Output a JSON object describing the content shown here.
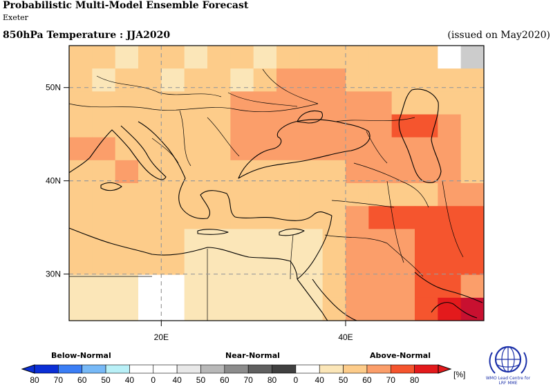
{
  "header": {
    "title": "Probabilistic Multi-Model Ensemble Forecast",
    "subtitle": "Exeter",
    "variable": "850hPa Temperature : JJA2020",
    "issued": "(issued on May2020)"
  },
  "map": {
    "lon_range": [
      10,
      55
    ],
    "lat_range": [
      25,
      54.5
    ],
    "lon_ticks": [
      {
        "value": 20,
        "label": "20E"
      },
      {
        "value": 40,
        "label": "40E"
      }
    ],
    "lat_ticks": [
      {
        "value": 30,
        "label": "30N"
      },
      {
        "value": 40,
        "label": "40N"
      },
      {
        "value": 50,
        "label": "50N"
      }
    ],
    "grid_lines": true,
    "palette": {
      "B40": "#ffffff",
      "N40": "#cccccc",
      "A40": "#fbe6b8",
      "A50": "#fdcc8a",
      "A60": "#fb9e6a",
      "A70": "#f5552e",
      "A80": "#e31a1c",
      "A90": "#c81030"
    }
  },
  "legend": {
    "categories": [
      "Below-Normal",
      "Near-Normal",
      "Above-Normal"
    ],
    "labels": [
      "80",
      "70",
      "60",
      "50",
      "40",
      "0",
      "40",
      "50",
      "60",
      "70",
      "80",
      "0",
      "40",
      "50",
      "60",
      "70",
      "80"
    ],
    "unit": "[%]",
    "colors": [
      "#0b2fd6",
      "#3b7ef5",
      "#77b9f7",
      "#b9f0f7",
      "#ffffff",
      "#ffffff",
      "#e8e8e8",
      "#b8b8b8",
      "#8c8c8c",
      "#606060",
      "#404040",
      "#ffffff",
      "#fbe6b8",
      "#fdcc8a",
      "#fb9e6a",
      "#f5552e",
      "#e31a1c"
    ]
  },
  "logo": {
    "text_line1": "WMO Lead Centre for",
    "text_line2": "LRF MME"
  }
}
